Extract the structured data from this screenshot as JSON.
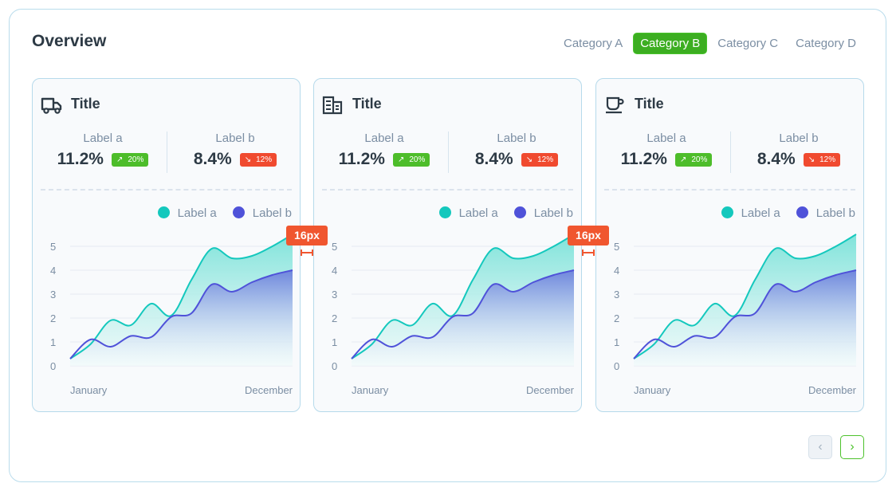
{
  "header": {
    "title": "Overview",
    "tabs": [
      {
        "label": "Category A",
        "active": false
      },
      {
        "label": "Category B",
        "active": true
      },
      {
        "label": "Category C",
        "active": false
      },
      {
        "label": "Category D",
        "active": false
      }
    ]
  },
  "cards": [
    {
      "icon": "truck-icon",
      "title": "Title",
      "stat_a": {
        "label": "Label a",
        "value": "11.2%",
        "change": "20%",
        "direction": "up"
      },
      "stat_b": {
        "label": "Label b",
        "value": "8.4%",
        "change": "12%",
        "direction": "down"
      }
    },
    {
      "icon": "building-icon",
      "title": "Title",
      "stat_a": {
        "label": "Label a",
        "value": "11.2%",
        "change": "20%",
        "direction": "up"
      },
      "stat_b": {
        "label": "Label b",
        "value": "8.4%",
        "change": "12%",
        "direction": "down"
      }
    },
    {
      "icon": "cup-icon",
      "title": "Title",
      "stat_a": {
        "label": "Label a",
        "value": "11.2%",
        "change": "20%",
        "direction": "up"
      },
      "stat_b": {
        "label": "Label b",
        "value": "8.4%",
        "change": "12%",
        "direction": "down"
      }
    }
  ],
  "annotations": [
    "16px",
    "16px"
  ],
  "colors": {
    "accent": "#3cae21",
    "series_a": "#14c8bd",
    "series_b": "#4f52d9",
    "up": "#4dbd2a",
    "down": "#f04a2f",
    "annotation": "#f0562f"
  },
  "chart_data": {
    "type": "area",
    "x_labels": [
      "January",
      "December"
    ],
    "ylim": [
      0,
      5.5
    ],
    "yticks": [
      0,
      1,
      2,
      3,
      4,
      5
    ],
    "grid": true,
    "legend": "top-right",
    "series": [
      {
        "name": "Label a",
        "color": "#14c8bd",
        "values": [
          0.3,
          0.9,
          1.9,
          1.7,
          2.6,
          2.1,
          3.6,
          4.9,
          4.5,
          4.6,
          5.0,
          5.5
        ]
      },
      {
        "name": "Label b",
        "color": "#4f52d9",
        "values": [
          0.3,
          1.1,
          0.8,
          1.25,
          1.2,
          2.05,
          2.2,
          3.4,
          3.1,
          3.5,
          3.8,
          4.0
        ]
      }
    ]
  },
  "pagination": {
    "prev_icon": "chevron-left-icon",
    "next_icon": "chevron-right-icon"
  }
}
